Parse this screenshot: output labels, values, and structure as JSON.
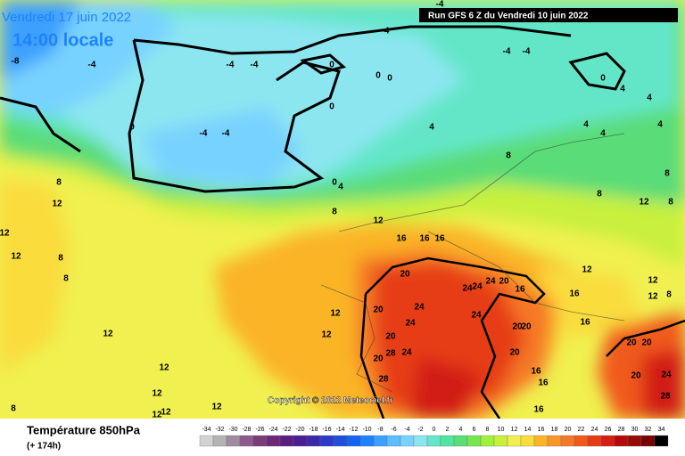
{
  "header": {
    "date": "Vendredi 17 juin 2022",
    "time": "14:00 locale",
    "run": "Run GFS 6 Z du Vendredi 10 juin 2022"
  },
  "copyright": "Copyright © 2022 Meteociel.fr",
  "footer": {
    "title": "Température 850hPa",
    "subtitle": "(+ 174h)"
  },
  "scale": {
    "values": [
      -34,
      -32,
      -30,
      -28,
      -26,
      -24,
      -22,
      -20,
      -18,
      -16,
      -14,
      -12,
      -10,
      -8,
      -6,
      -4,
      -2,
      0,
      2,
      4,
      6,
      8,
      10,
      12,
      14,
      16,
      18,
      20,
      22,
      24,
      26,
      28,
      30,
      32,
      34
    ],
    "colors": [
      "#d2d2d2",
      "#b4b4b4",
      "#a08ca0",
      "#8c5a8c",
      "#7a3c7a",
      "#6e2878",
      "#5a1e82",
      "#4b1e96",
      "#3c28aa",
      "#2d3cc8",
      "#1e50dc",
      "#1464f0",
      "#1e82ff",
      "#3ca0ff",
      "#5abeff",
      "#78d2ff",
      "#8ce6f0",
      "#64e6c8",
      "#50e6a0",
      "#5adc78",
      "#78e650",
      "#a0f03c",
      "#c8f03c",
      "#f0f050",
      "#fadc3c",
      "#fab428",
      "#fa9628",
      "#f57828",
      "#f05a1e",
      "#e63c14",
      "#d21e14",
      "#b40a0a",
      "#960a0a",
      "#780000",
      "#000000"
    ]
  },
  "contour_labels": [
    "-4",
    "-4",
    "-4",
    "-4",
    "-8",
    "-4",
    "-4",
    "-4",
    "0",
    "0",
    "0",
    "0",
    "4",
    "4",
    "0",
    "4",
    "0",
    "-4",
    "-4",
    "4",
    "4",
    "4",
    "8",
    "8",
    "0",
    "4",
    "8",
    "12",
    "8",
    "12",
    "8",
    "12",
    "8",
    "12",
    "16",
    "16",
    "16",
    "12",
    "8",
    "8",
    "12",
    "20",
    "24",
    "24",
    "24",
    "20",
    "16",
    "16",
    "12",
    "12",
    "8",
    "12",
    "20",
    "24",
    "24",
    "24",
    "16",
    "12",
    "12",
    "20",
    "20",
    "20",
    "20",
    "20",
    "28",
    "24",
    "20",
    "20",
    "16",
    "16",
    "20",
    "24",
    "12",
    "12",
    "12",
    "28",
    "28",
    "8",
    "12",
    "16",
    "12"
  ]
}
